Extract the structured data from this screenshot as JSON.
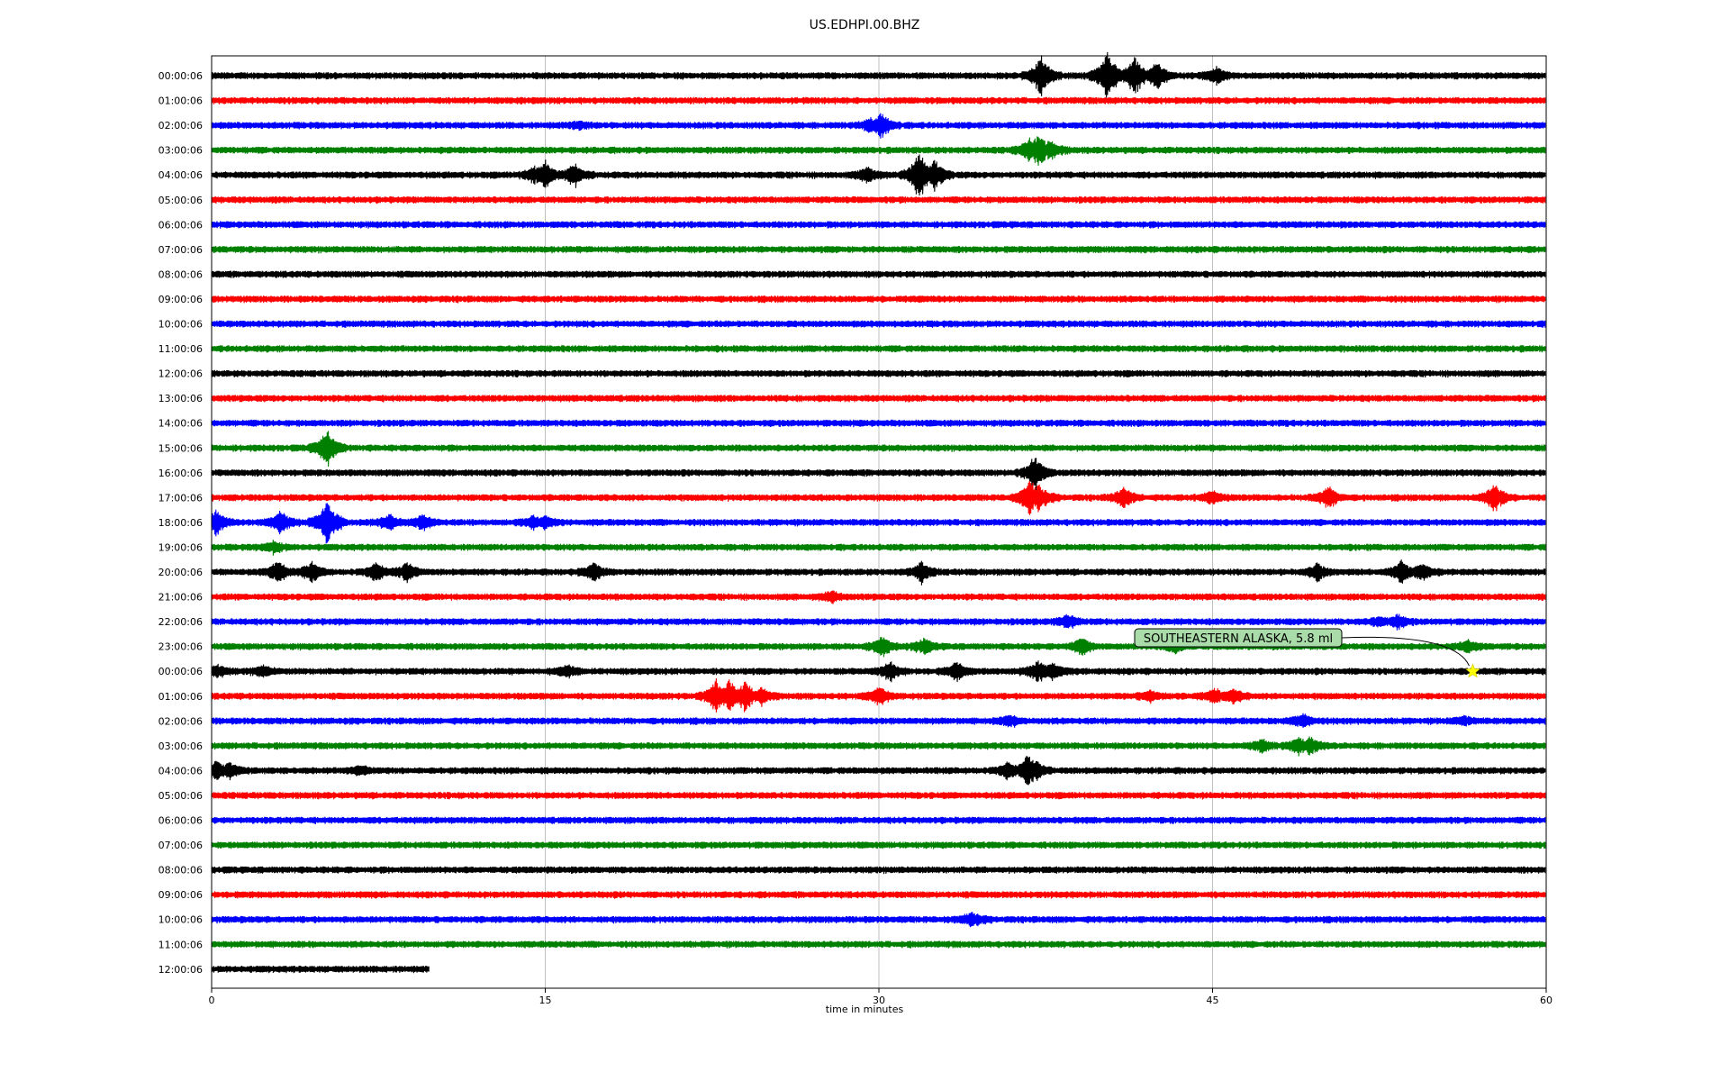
{
  "chart_data": {
    "type": "line",
    "title": "US.EDHPI.00.BHZ",
    "xlabel": "time in minutes",
    "ylabel": "",
    "xlim": [
      0,
      60
    ],
    "x_ticks": [
      "0",
      "15",
      "30",
      "45",
      "60"
    ],
    "x_tick_values": [
      0,
      15,
      30,
      45,
      60
    ],
    "grid": "vertical lines at major x ticks",
    "row_colors": [
      "#000000",
      "#ff0000",
      "#0000ff",
      "#008000"
    ],
    "rows": [
      {
        "label": "00:00:06",
        "end": 60,
        "events": [
          [
            37.3,
            2.4
          ],
          [
            40.3,
            3.0
          ],
          [
            41.5,
            2.2
          ],
          [
            42.5,
            1.6
          ],
          [
            45.2,
            0.9
          ]
        ]
      },
      {
        "label": "01:00:06",
        "end": 60,
        "events": []
      },
      {
        "label": "02:00:06",
        "end": 60,
        "events": [
          [
            30.1,
            1.4
          ],
          [
            29.6,
            0.7
          ],
          [
            16.5,
            0.4
          ]
        ]
      },
      {
        "label": "03:00:06",
        "end": 60,
        "events": [
          [
            37.2,
            2.0
          ],
          [
            36.8,
            1.5
          ],
          [
            37.7,
            1.2
          ]
        ]
      },
      {
        "label": "04:00:06",
        "end": 60,
        "events": [
          [
            15.0,
            1.6
          ],
          [
            16.3,
            1.3
          ],
          [
            14.5,
            0.9
          ],
          [
            31.8,
            3.0
          ],
          [
            32.5,
            1.8
          ],
          [
            29.5,
            0.8
          ]
        ]
      },
      {
        "label": "05:00:06",
        "end": 60,
        "events": []
      },
      {
        "label": "06:00:06",
        "end": 60,
        "events": []
      },
      {
        "label": "07:00:06",
        "end": 60,
        "events": []
      },
      {
        "label": "08:00:06",
        "end": 60,
        "events": []
      },
      {
        "label": "09:00:06",
        "end": 60,
        "events": []
      },
      {
        "label": "10:00:06",
        "end": 60,
        "events": []
      },
      {
        "label": "11:00:06",
        "end": 60,
        "events": []
      },
      {
        "label": "12:00:06",
        "end": 60,
        "events": []
      },
      {
        "label": "13:00:06",
        "end": 60,
        "events": []
      },
      {
        "label": "14:00:06",
        "end": 60,
        "events": []
      },
      {
        "label": "15:00:06",
        "end": 60,
        "events": [
          [
            5.2,
            2.2
          ]
        ]
      },
      {
        "label": "16:00:06",
        "end": 60,
        "events": [
          [
            37.0,
            2.0
          ]
        ]
      },
      {
        "label": "17:00:06",
        "end": 60,
        "events": [
          [
            36.8,
            2.2
          ],
          [
            37.2,
            1.6
          ],
          [
            41.0,
            1.2
          ],
          [
            50.2,
            1.3
          ],
          [
            57.7,
            1.7
          ],
          [
            45.0,
            0.7
          ]
        ]
      },
      {
        "label": "18:00:06",
        "end": 60,
        "events": [
          [
            5.2,
            3.0
          ],
          [
            3.1,
            1.4
          ],
          [
            0.2,
            1.3
          ],
          [
            8.0,
            0.9
          ],
          [
            9.5,
            0.8
          ],
          [
            14.5,
            0.7
          ],
          [
            15.0,
            0.6
          ]
        ]
      },
      {
        "label": "19:00:06",
        "end": 60,
        "events": [
          [
            2.8,
            0.6
          ]
        ]
      },
      {
        "label": "20:00:06",
        "end": 60,
        "events": [
          [
            3.0,
            1.3
          ],
          [
            4.5,
            1.1
          ],
          [
            7.4,
            1.0
          ],
          [
            8.8,
            1.1
          ],
          [
            17.2,
            1.0
          ],
          [
            31.9,
            1.2
          ],
          [
            49.7,
            0.9
          ],
          [
            53.5,
            1.3
          ],
          [
            54.4,
            1.1
          ]
        ]
      },
      {
        "label": "21:00:06",
        "end": 60,
        "events": [
          [
            27.9,
            0.6
          ]
        ]
      },
      {
        "label": "22:00:06",
        "end": 60,
        "events": [
          [
            38.5,
            0.8
          ],
          [
            53.3,
            0.8
          ],
          [
            52.5,
            0.5
          ]
        ]
      },
      {
        "label": "23:00:06",
        "end": 60,
        "events": [
          [
            30.1,
            1.2
          ],
          [
            32.0,
            0.8
          ],
          [
            39.1,
            0.9
          ],
          [
            43.3,
            0.7
          ],
          [
            56.5,
            0.6
          ]
        ]
      },
      {
        "label": "00:00:06",
        "end": 60,
        "events": [
          [
            30.5,
            1.0
          ],
          [
            33.5,
            1.0
          ],
          [
            37.2,
            1.2
          ],
          [
            37.8,
            1.0
          ],
          [
            16.0,
            0.6
          ],
          [
            0.2,
            0.8
          ],
          [
            2.3,
            0.6
          ]
        ]
      },
      {
        "label": "01:00:06",
        "end": 60,
        "events": [
          [
            22.7,
            1.9
          ],
          [
            23.3,
            2.0
          ],
          [
            24.0,
            1.7
          ],
          [
            24.7,
            1.0
          ],
          [
            30.0,
            1.0
          ],
          [
            45.1,
            0.9
          ],
          [
            45.9,
            0.8
          ],
          [
            42.2,
            0.6
          ]
        ]
      },
      {
        "label": "02:00:06",
        "end": 60,
        "events": [
          [
            35.9,
            0.6
          ],
          [
            49.1,
            0.7
          ],
          [
            56.3,
            0.5
          ]
        ]
      },
      {
        "label": "03:00:06",
        "end": 60,
        "events": [
          [
            47.2,
            0.7
          ],
          [
            48.9,
            1.0
          ],
          [
            49.4,
            0.9
          ]
        ]
      },
      {
        "label": "04:00:06",
        "end": 60,
        "events": [
          [
            0.2,
            1.2
          ],
          [
            0.8,
            1.0
          ],
          [
            36.7,
            1.8
          ],
          [
            37.0,
            1.3
          ],
          [
            35.8,
            0.9
          ],
          [
            6.7,
            0.5
          ]
        ]
      },
      {
        "label": "05:00:06",
        "end": 60,
        "events": []
      },
      {
        "label": "06:00:06",
        "end": 60,
        "events": []
      },
      {
        "label": "07:00:06",
        "end": 60,
        "events": []
      },
      {
        "label": "08:00:06",
        "end": 60,
        "events": []
      },
      {
        "label": "09:00:06",
        "end": 60,
        "events": []
      },
      {
        "label": "10:00:06",
        "end": 60,
        "events": [
          [
            34.2,
            0.8
          ]
        ]
      },
      {
        "label": "11:00:06",
        "end": 60,
        "events": []
      },
      {
        "label": "12:00:06",
        "end": 9.8,
        "events": []
      }
    ],
    "annotation": {
      "text": "SOUTHEASTERN ALASKA, 5.8 ml",
      "row_index": 24,
      "x": 56.7,
      "marker": "star",
      "marker_color": "#ffff00",
      "box_color": "#a9dca9"
    }
  }
}
